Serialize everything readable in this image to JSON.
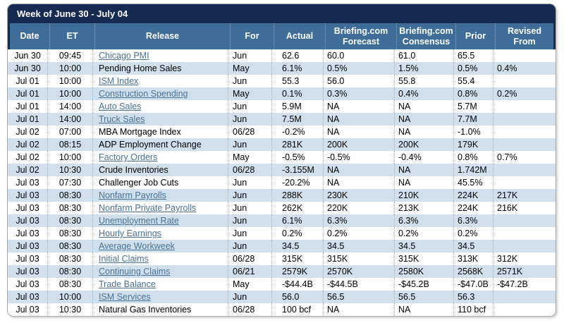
{
  "title": "Week of June 30 - July 04",
  "colors": {
    "navy": "#152b52",
    "steel": "#3d6d98",
    "altrow": "#cfdfeb",
    "link": "#4a7296"
  },
  "columns": [
    {
      "key": "date",
      "label": "Date"
    },
    {
      "key": "et",
      "label": "ET"
    },
    {
      "key": "release",
      "label": "Release"
    },
    {
      "key": "for",
      "label": "For"
    },
    {
      "key": "actual",
      "label": "Actual"
    },
    {
      "key": "forecast",
      "label": "Briefing.com Forecast"
    },
    {
      "key": "consensus",
      "label": "Briefing.com Consensus"
    },
    {
      "key": "prior",
      "label": "Prior"
    },
    {
      "key": "revised",
      "label": "Revised From"
    }
  ],
  "rows": [
    {
      "date": "Jun 30",
      "et": "09:45",
      "release": "Chicago PMI",
      "link": true,
      "for": "Jun",
      "actual": "62.6",
      "forecast": "60.0",
      "consensus": "61.0",
      "prior": "65.5",
      "revised": ""
    },
    {
      "date": "Jun 30",
      "et": "10:00",
      "release": "Pending Home Sales",
      "link": false,
      "for": "May",
      "actual": "6.1%",
      "forecast": "0.5%",
      "consensus": "1.5%",
      "prior": "0.5%",
      "revised": "0.4%"
    },
    {
      "date": "Jul 01",
      "et": "10:00",
      "release": "ISM Index",
      "link": true,
      "for": "Jun",
      "actual": "55.3",
      "forecast": "56.0",
      "consensus": "55.8",
      "prior": "55.4",
      "revised": ""
    },
    {
      "date": "Jul 01",
      "et": "10:00",
      "release": "Construction Spending",
      "link": true,
      "for": "May",
      "actual": "0.1%",
      "forecast": "0.3%",
      "consensus": "0.4%",
      "prior": "0.8%",
      "revised": "0.2%"
    },
    {
      "date": "Jul 01",
      "et": "14:00",
      "release": "Auto Sales",
      "link": true,
      "for": "Jun",
      "actual": "5.9M",
      "forecast": "NA",
      "consensus": "NA",
      "prior": "5.7M",
      "revised": ""
    },
    {
      "date": "Jul 01",
      "et": "14:00",
      "release": "Truck Sales",
      "link": true,
      "for": "Jun",
      "actual": "7.5M",
      "forecast": "NA",
      "consensus": "NA",
      "prior": "7.7M",
      "revised": ""
    },
    {
      "date": "Jul 02",
      "et": "07:00",
      "release": "MBA Mortgage Index",
      "link": false,
      "for": "06/28",
      "actual": "-0.2%",
      "forecast": "NA",
      "consensus": "NA",
      "prior": "-1.0%",
      "revised": ""
    },
    {
      "date": "Jul 02",
      "et": "08:15",
      "release": "ADP Employment Change",
      "link": false,
      "for": "Jun",
      "actual": "281K",
      "forecast": "200K",
      "consensus": "200K",
      "prior": "179K",
      "revised": ""
    },
    {
      "date": "Jul 02",
      "et": "10:00",
      "release": "Factory Orders",
      "link": true,
      "for": "May",
      "actual": "-0.5%",
      "forecast": "-0.5%",
      "consensus": "-0.4%",
      "prior": "0.8%",
      "revised": "0.7%"
    },
    {
      "date": "Jul 02",
      "et": "10:30",
      "release": "Crude Inventories",
      "link": false,
      "for": "06/28",
      "actual": "-3.155M",
      "forecast": "NA",
      "consensus": "NA",
      "prior": "1.742M",
      "revised": ""
    },
    {
      "date": "Jul 03",
      "et": "07:30",
      "release": "Challenger Job Cuts",
      "link": false,
      "for": "Jun",
      "actual": "-20.2%",
      "forecast": "NA",
      "consensus": "NA",
      "prior": "45.5%",
      "revised": ""
    },
    {
      "date": "Jul 03",
      "et": "08:30",
      "release": "Nonfarm Payrolls",
      "link": true,
      "for": "Jun",
      "actual": "288K",
      "forecast": "230K",
      "consensus": "210K",
      "prior": "224K",
      "revised": "217K"
    },
    {
      "date": "Jul 03",
      "et": "08:30",
      "release": "Nonfarm Private Payrolls",
      "link": true,
      "for": "Jun",
      "actual": "262K",
      "forecast": "220K",
      "consensus": "213K",
      "prior": "224K",
      "revised": "216K"
    },
    {
      "date": "Jul 03",
      "et": "08:30",
      "release": "Unemployment Rate",
      "link": true,
      "for": "Jun",
      "actual": "6.1%",
      "forecast": "6.3%",
      "consensus": "6.3%",
      "prior": "6.3%",
      "revised": ""
    },
    {
      "date": "Jul 03",
      "et": "08:30",
      "release": "Hourly Earnings",
      "link": true,
      "for": "Jun",
      "actual": "0.2%",
      "forecast": "0.2%",
      "consensus": "0.2%",
      "prior": "0.2%",
      "revised": ""
    },
    {
      "date": "Jul 03",
      "et": "08:30",
      "release": "Average Workweek",
      "link": true,
      "for": "Jun",
      "actual": "34.5",
      "forecast": "34.5",
      "consensus": "34.5",
      "prior": "34.5",
      "revised": ""
    },
    {
      "date": "Jul 03",
      "et": "08:30",
      "release": "Initial Claims",
      "link": true,
      "for": "06/28",
      "actual": "315K",
      "forecast": "315K",
      "consensus": "315K",
      "prior": "313K",
      "revised": "312K"
    },
    {
      "date": "Jul 03",
      "et": "08:30",
      "release": "Continuing Claims",
      "link": true,
      "for": "06/21",
      "actual": "2579K",
      "forecast": "2570K",
      "consensus": "2580K",
      "prior": "2568K",
      "revised": "2571K"
    },
    {
      "date": "Jul 03",
      "et": "08:30",
      "release": "Trade Balance",
      "link": true,
      "for": "May",
      "actual": "-$44.4B",
      "forecast": "-$44.5B",
      "consensus": "-$45.2B",
      "prior": "-$47.0B",
      "revised": "-$47.2B"
    },
    {
      "date": "Jul 03",
      "et": "10:00",
      "release": "ISM Services",
      "link": true,
      "for": "Jun",
      "actual": "56.0",
      "forecast": "56.5",
      "consensus": "56.5",
      "prior": "56.3",
      "revised": ""
    },
    {
      "date": "Jul 03",
      "et": "10:30",
      "release": "Natural Gas Inventories",
      "link": false,
      "for": "06/28",
      "actual": "100 bcf",
      "forecast": "NA",
      "consensus": "NA",
      "prior": "110 bcf",
      "revised": ""
    }
  ]
}
